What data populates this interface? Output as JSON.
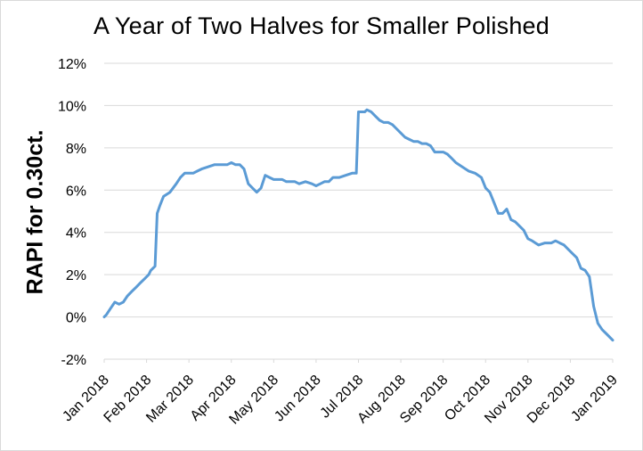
{
  "chart_data": {
    "type": "line",
    "title": "A Year of Two Halves for Smaller Polished",
    "xlabel": "",
    "ylabel": "RAPI for 0.30ct.",
    "ylim": [
      -2,
      12
    ],
    "yticks": [
      "-2%",
      "0%",
      "2%",
      "4%",
      "6%",
      "8%",
      "10%",
      "12%"
    ],
    "ytick_values": [
      -2,
      0,
      2,
      4,
      6,
      8,
      10,
      12
    ],
    "xticks": [
      "Jan 2018",
      "Feb 2018",
      "Mar 2018",
      "Apr 2018",
      "May 2018",
      "Jun 2018",
      "Jul 2018",
      "Aug 2018",
      "Sep 2018",
      "Oct 2018",
      "Nov 2018",
      "Dec 2018",
      "Jan 2019"
    ],
    "grid": true,
    "legend": "none",
    "color": "#5b9bd5",
    "series": [
      {
        "x_unit": "month index (0 = Jan 2018)",
        "x": [
          0,
          0.05,
          0.15,
          0.25,
          0.35,
          0.45,
          0.55,
          0.65,
          0.75,
          0.85,
          0.95,
          1.05,
          1.1,
          1.2,
          1.25,
          1.32,
          1.4,
          1.55,
          1.7,
          1.8,
          1.9,
          2.0,
          2.1,
          2.2,
          2.3,
          2.45,
          2.6,
          2.7,
          2.8,
          2.9,
          3.0,
          3.1,
          3.2,
          3.3,
          3.4,
          3.5,
          3.6,
          3.7,
          3.8,
          3.9,
          4.0,
          4.1,
          4.2,
          4.3,
          4.4,
          4.5,
          4.6,
          4.75,
          4.9,
          5.0,
          5.1,
          5.2,
          5.3,
          5.4,
          5.55,
          5.7,
          5.85,
          5.95,
          6.0,
          6.05,
          6.15,
          6.2,
          6.3,
          6.4,
          6.5,
          6.6,
          6.7,
          6.8,
          6.9,
          7.0,
          7.1,
          7.2,
          7.3,
          7.4,
          7.5,
          7.6,
          7.7,
          7.8,
          7.9,
          8.0,
          8.1,
          8.2,
          8.3,
          8.45,
          8.6,
          8.75,
          8.9,
          9.0,
          9.1,
          9.2,
          9.3,
          9.4,
          9.5,
          9.6,
          9.7,
          9.8,
          9.9,
          10.0,
          10.1,
          10.25,
          10.4,
          10.55,
          10.65,
          10.75,
          10.85,
          10.95,
          11.05,
          11.15,
          11.25,
          11.35,
          11.45,
          11.55,
          11.65,
          11.75,
          11.85,
          12.0
        ],
        "y": [
          0.0,
          0.1,
          0.4,
          0.7,
          0.6,
          0.7,
          1.0,
          1.2,
          1.4,
          1.6,
          1.8,
          2.0,
          2.2,
          2.4,
          4.9,
          5.3,
          5.7,
          5.9,
          6.3,
          6.6,
          6.8,
          6.8,
          6.8,
          6.9,
          7.0,
          7.1,
          7.2,
          7.2,
          7.2,
          7.2,
          7.3,
          7.2,
          7.2,
          7.0,
          6.3,
          6.1,
          5.9,
          6.1,
          6.7,
          6.6,
          6.5,
          6.5,
          6.5,
          6.4,
          6.4,
          6.4,
          6.3,
          6.4,
          6.3,
          6.2,
          6.3,
          6.4,
          6.4,
          6.6,
          6.6,
          6.7,
          6.8,
          6.8,
          9.7,
          9.7,
          9.7,
          9.8,
          9.7,
          9.5,
          9.3,
          9.2,
          9.2,
          9.1,
          8.9,
          8.7,
          8.5,
          8.4,
          8.3,
          8.3,
          8.2,
          8.2,
          8.1,
          7.8,
          7.8,
          7.8,
          7.7,
          7.5,
          7.3,
          7.1,
          6.9,
          6.8,
          6.6,
          6.1,
          5.9,
          5.4,
          4.9,
          4.9,
          5.1,
          4.6,
          4.5,
          4.3,
          4.1,
          3.7,
          3.6,
          3.4,
          3.5,
          3.5,
          3.6,
          3.5,
          3.4,
          3.2,
          3.0,
          2.8,
          2.3,
          2.2,
          1.9,
          0.5,
          -0.3,
          -0.6,
          -0.8,
          -1.1
        ]
      }
    ]
  }
}
